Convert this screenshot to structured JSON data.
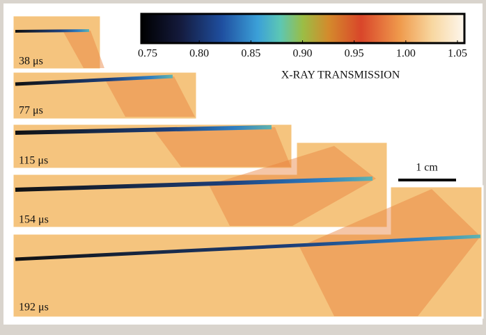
{
  "colorbar": {
    "label": "X-RAY TRANSMISSION",
    "lim": [
      0.75,
      1.05
    ],
    "ticks": [
      0.75,
      {
        "value": 0.8,
        "label": "0.80"
      },
      0.85,
      {
        "value": 0.9,
        "label": "0.90"
      },
      0.95,
      {
        "value": 1,
        "label": "1.00"
      },
      1.05
    ]
  },
  "frames": [
    {
      "label": "38 μs"
    },
    {
      "label": "77 μs"
    },
    {
      "label": "115 μs"
    },
    {
      "label": "154 μs"
    },
    {
      "label": "192 μs"
    }
  ],
  "scale_bar": {
    "label": "1 cm"
  }
}
